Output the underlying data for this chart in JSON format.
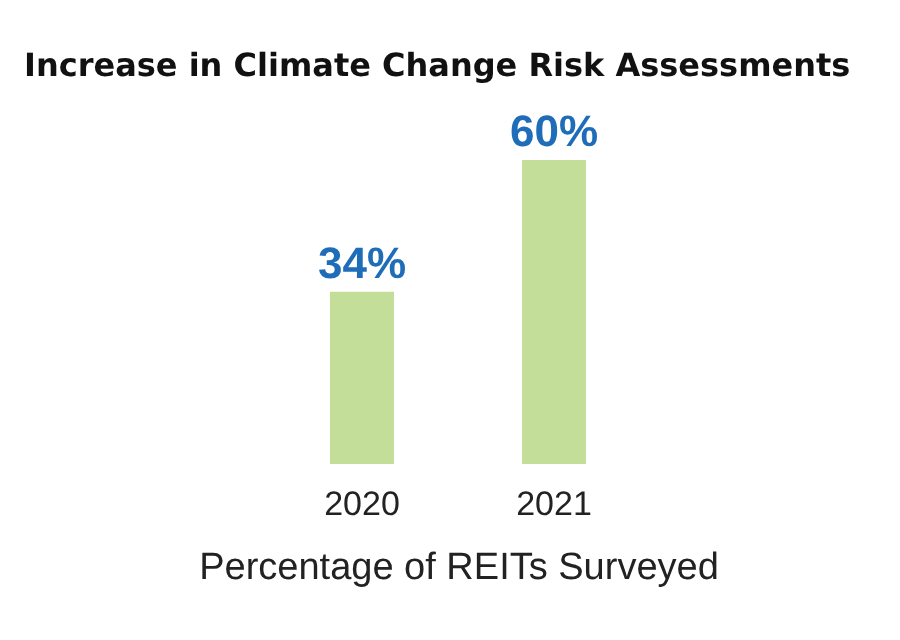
{
  "chart_data": {
    "type": "bar",
    "title": "Increase in Climate Change Risk Assessments",
    "xlabel": "Percentage of REITs Surveyed",
    "categories": [
      "2020",
      "2021"
    ],
    "values": [
      34,
      60
    ],
    "value_labels": [
      "34%",
      "60%"
    ],
    "color": "#c2de98"
  }
}
